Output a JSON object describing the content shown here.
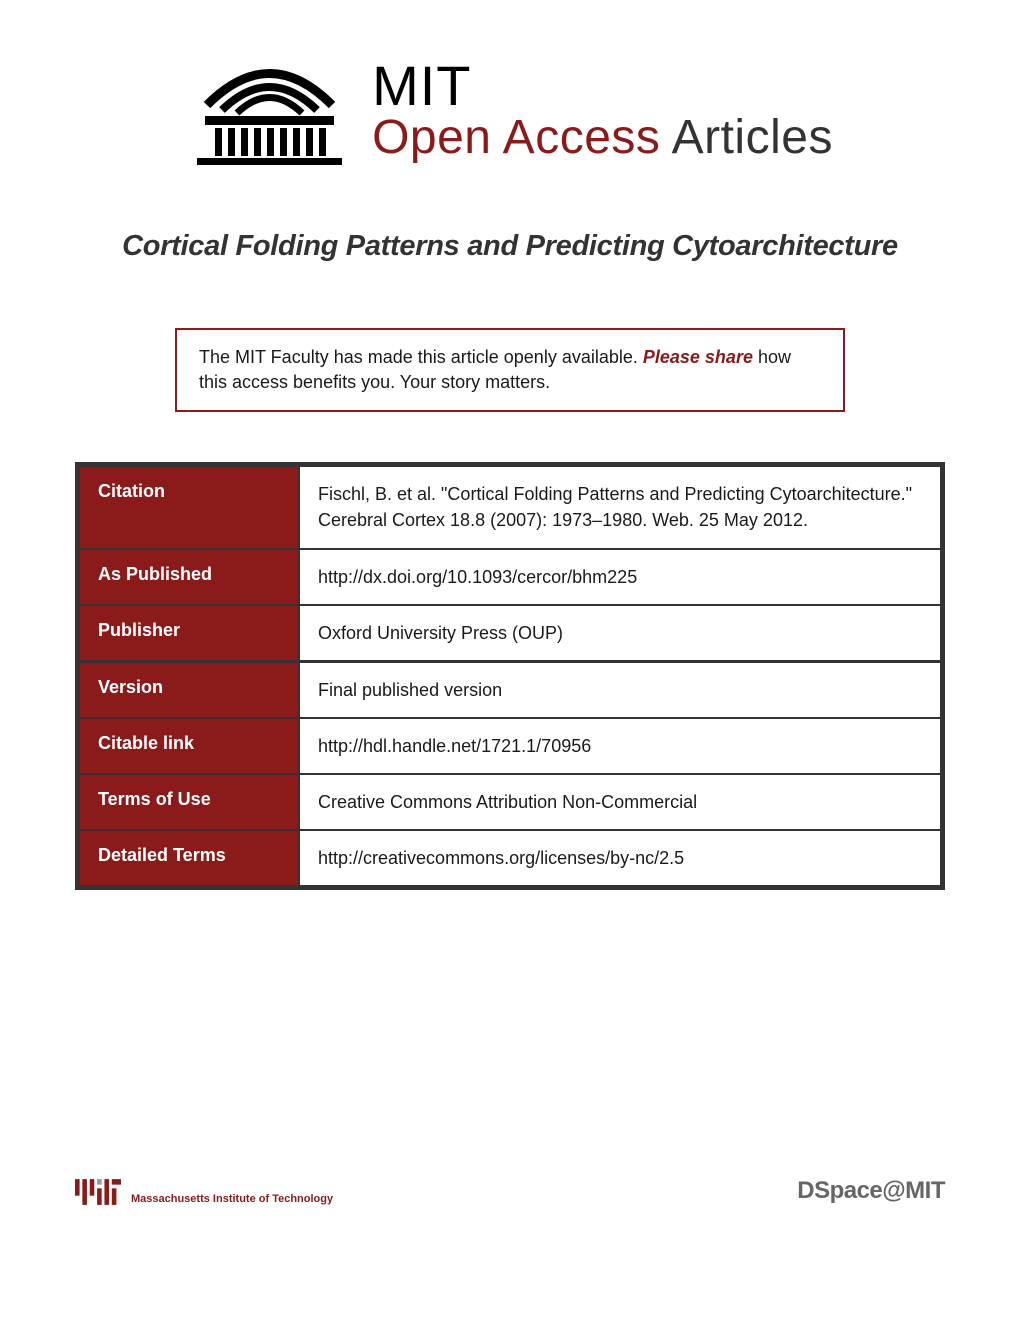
{
  "header": {
    "logo_mit": "MIT",
    "logo_open_access": "Open Access",
    "logo_articles": " Articles"
  },
  "title": "Cortical Folding Patterns and Predicting Cytoarchitecture",
  "notice": {
    "text_before": "The MIT Faculty has made this article openly available. ",
    "please_share": "Please share",
    "text_after": " how this access benefits you. Your story matters."
  },
  "metadata": {
    "rows": [
      {
        "label": "Citation",
        "value": "Fischl, B. et al. \"Cortical Folding Patterns and Predicting Cytoarchitecture.\" Cerebral Cortex 18.8 (2007): 1973–1980. Web. 25 May 2012.",
        "section_break": false
      },
      {
        "label": "As Published",
        "value": "http://dx.doi.org/10.1093/cercor/bhm225",
        "section_break": false
      },
      {
        "label": "Publisher",
        "value": "Oxford University Press (OUP)",
        "section_break": false
      },
      {
        "label": "Version",
        "value": "Final published version",
        "section_break": true
      },
      {
        "label": "Citable link",
        "value": "http://hdl.handle.net/1721.1/70956",
        "section_break": false
      },
      {
        "label": "Terms of Use",
        "value": "Creative Commons Attribution Non-Commercial",
        "section_break": false
      },
      {
        "label": "Detailed Terms",
        "value": "http://creativecommons.org/licenses/by-nc/2.5",
        "section_break": false
      }
    ]
  },
  "footer": {
    "mit_name": "Massachusetts Institute of Technology",
    "dspace": "DSpace@MIT"
  },
  "colors": {
    "accent": "#8b1a1a",
    "text": "#1a1a1a",
    "border": "#333333",
    "background": "#ffffff",
    "footer_gray": "#666666"
  }
}
